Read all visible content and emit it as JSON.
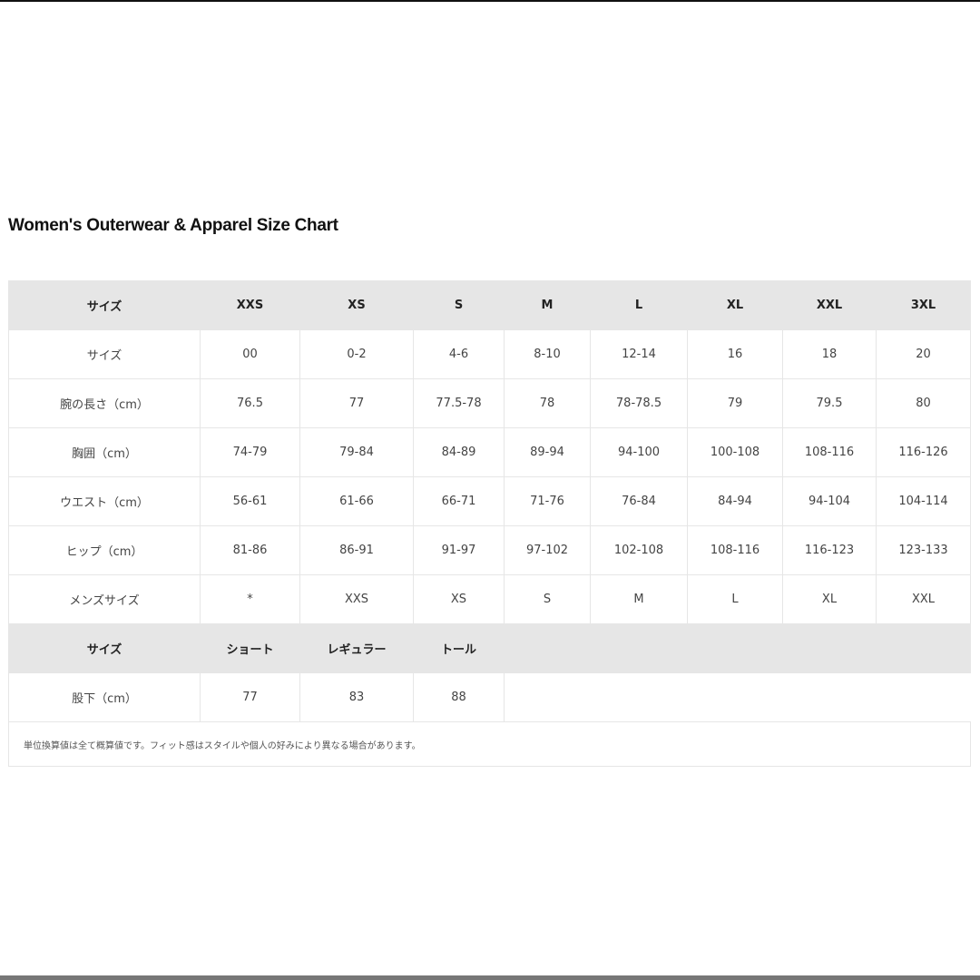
{
  "title": "Women's Outerwear & Apparel Size Chart",
  "header": [
    "サイズ",
    "XXS",
    "XS",
    "S",
    "M",
    "L",
    "XL",
    "XXL",
    "3XL"
  ],
  "rows": [
    [
      "サイズ",
      "00",
      "0-2",
      "4-6",
      "8-10",
      "12-14",
      "16",
      "18",
      "20"
    ],
    [
      "腕の長さ（cm）",
      "76.5",
      "77",
      "77.5-78",
      "78",
      "78-78.5",
      "79",
      "79.5",
      "80"
    ],
    [
      "胸囲（cm）",
      "74-79",
      "79-84",
      "84-89",
      "89-94",
      "94-100",
      "100-108",
      "108-116",
      "116-126"
    ],
    [
      "ウエスト（cm）",
      "56-61",
      "61-66",
      "66-71",
      "71-76",
      "76-84",
      "84-94",
      "94-104",
      "104-114"
    ],
    [
      "ヒップ（cm）",
      "81-86",
      "86-91",
      "91-97",
      "97-102",
      "102-108",
      "108-116",
      "116-123",
      "123-133"
    ],
    [
      "メンズサイズ",
      "*",
      "XXS",
      "XS",
      "S",
      "M",
      "L",
      "XL",
      "XXL"
    ]
  ],
  "inseam_header": [
    "サイズ",
    "ショート",
    "レギュラー",
    "トール"
  ],
  "inseam_row": [
    "股下（cm）",
    "77",
    "83",
    "88"
  ],
  "note": "単位換算値は全て概算値です。フィット感はスタイルや個人の好みにより異なる場合があります。",
  "colors": {
    "header_bg": "#e6e6e6",
    "border": "#e6e6e6"
  }
}
